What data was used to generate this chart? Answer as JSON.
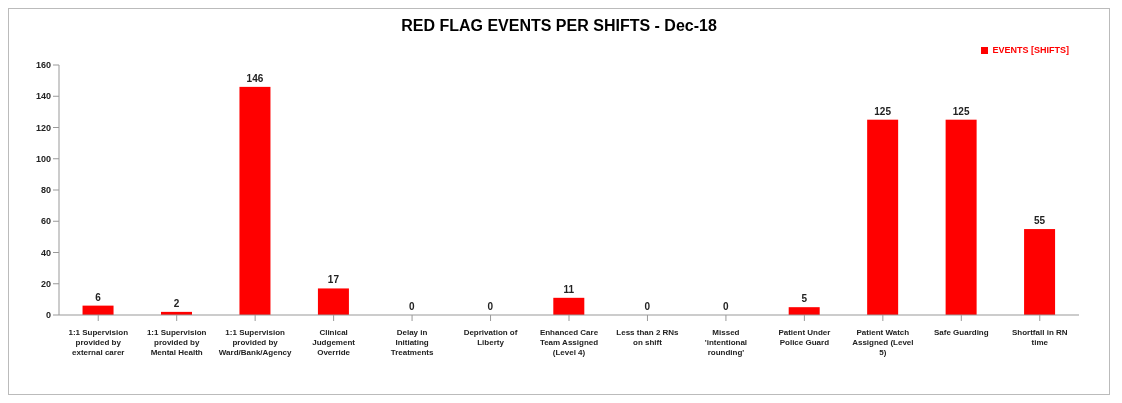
{
  "chart_data": {
    "type": "bar",
    "title": "RED FLAG EVENTS PER SHIFTS - Dec-18",
    "categories": [
      "1:1 Supervision provided by external carer",
      "1:1 Supervision provided by Mental Health",
      "1:1 Supervision provided by Ward/Bank/Agency",
      "Clinical Judgement Override",
      "Delay in Initiating Treatments",
      "Deprivation of Liberty",
      "Enhanced Care Team Assigned (Level 4)",
      "Less than 2 RNs on shift",
      "Missed 'intentional rounding'",
      "Patient Under Police Guard",
      "Patient Watch Assigned (Level 5)",
      "Safe Guarding",
      "Shortfall in RN time"
    ],
    "series": [
      {
        "name": "EVENTS [SHIFTS]",
        "color": "#ff0000",
        "values": [
          6,
          2,
          146,
          17,
          0,
          0,
          11,
          0,
          0,
          5,
          125,
          125,
          55
        ]
      }
    ],
    "ylim": [
      0,
      160
    ],
    "yticks": [
      0,
      20,
      40,
      60,
      80,
      100,
      120,
      140,
      160
    ],
    "grid": false,
    "legend": "top right",
    "data_labels": true
  }
}
